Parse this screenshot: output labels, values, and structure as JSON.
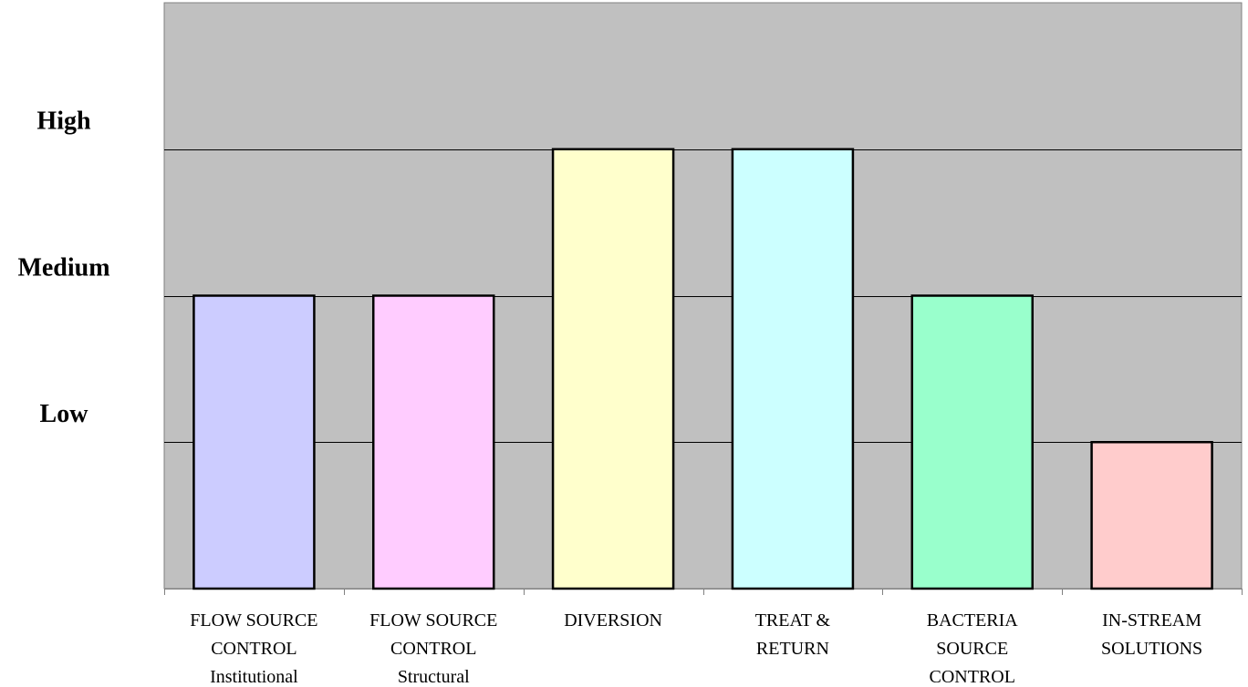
{
  "chart_data": {
    "type": "bar",
    "title": "",
    "xlabel": "",
    "ylabel": "",
    "ylim": [
      0,
      4
    ],
    "y_tick_labels": [
      {
        "value": 1,
        "label": "Low"
      },
      {
        "value": 2,
        "label": "Medium"
      },
      {
        "value": 3,
        "label": "High"
      }
    ],
    "categories": [
      {
        "lines": [
          "FLOW SOURCE",
          "CONTROL",
          "Institutional"
        ]
      },
      {
        "lines": [
          "FLOW SOURCE",
          "CONTROL",
          "Structural"
        ]
      },
      {
        "lines": [
          "DIVERSION"
        ]
      },
      {
        "lines": [
          "TREAT &",
          "RETURN"
        ]
      },
      {
        "lines": [
          "BACTERIA",
          "SOURCE",
          "CONTROL"
        ]
      },
      {
        "lines": [
          "IN-STREAM",
          "SOLUTIONS"
        ]
      }
    ],
    "values": [
      2,
      2,
      3,
      3,
      2,
      1
    ],
    "bar_colors": [
      "#ccccff",
      "#ffccff",
      "#ffffcc",
      "#ccffff",
      "#99ffcc",
      "#ffcccc"
    ],
    "plot_background": "#c0c0c0",
    "gridlines": true,
    "legend": "none"
  }
}
